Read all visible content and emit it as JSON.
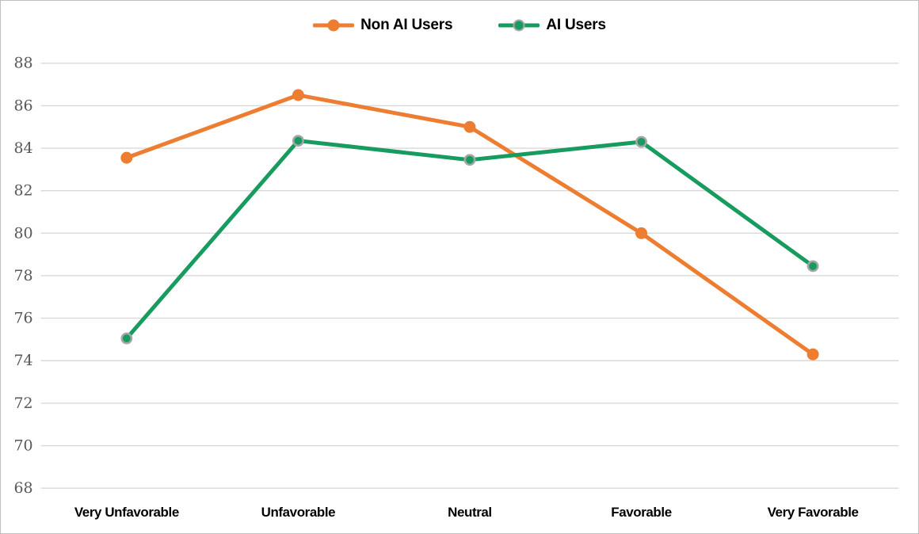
{
  "chart_data": {
    "type": "line",
    "categories": [
      "Very Unfavorable",
      "Unfavorable",
      "Neutral",
      "Favorable",
      "Very Favorable"
    ],
    "series": [
      {
        "name": "Non AI Users",
        "color": "#ED7D31",
        "marker_fill": "#ED7D31",
        "marker_stroke": "#ED7D31",
        "values": [
          83.55,
          86.5,
          85.0,
          80.0,
          74.3
        ]
      },
      {
        "name": "AI Users",
        "color": "#179B5E",
        "marker_fill": "#179B5E",
        "marker_stroke": "#A6A6A6",
        "values": [
          75.05,
          84.35,
          83.45,
          84.3,
          78.45
        ]
      }
    ],
    "title": "",
    "xlabel": "",
    "ylabel": "",
    "y_axis": {
      "min": 68,
      "max": 88,
      "step": 2,
      "ticks": [
        68,
        70,
        72,
        74,
        76,
        78,
        80,
        82,
        84,
        86,
        88
      ]
    },
    "ylim": [
      68,
      88
    ],
    "grid": true,
    "legend_position": "top-center",
    "colors": {
      "gridline": "#D9D9D9",
      "y_tick_text": "#595959",
      "x_tick_text": "#000000",
      "background": "#FFFFFF",
      "border": "#BFBFBF"
    }
  }
}
